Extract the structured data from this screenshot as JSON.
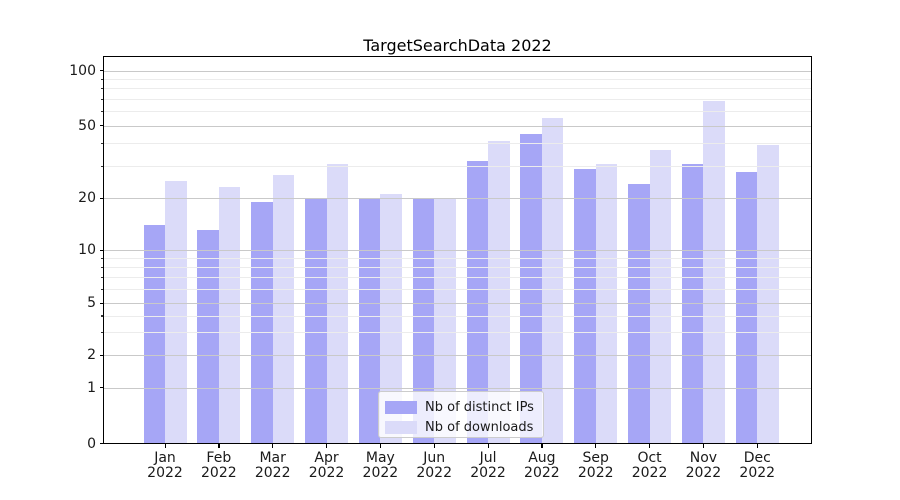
{
  "title": "TargetSearchData 2022",
  "chart_data": {
    "type": "bar",
    "title": "TargetSearchData 2022",
    "categories": [
      "Jan",
      "Feb",
      "Mar",
      "Apr",
      "May",
      "Jun",
      "Jul",
      "Aug",
      "Sep",
      "Oct",
      "Nov",
      "Dec"
    ],
    "category_year": "2022",
    "series": [
      {
        "name": "Nb of distinct IPs",
        "color": "#a6a6f6",
        "values": [
          14,
          13,
          19,
          20,
          20,
          20,
          32,
          45,
          29,
          24,
          31,
          28
        ]
      },
      {
        "name": "Nb of downloads",
        "color": "#dbdbf9",
        "values": [
          25,
          23,
          27,
          31,
          21,
          20,
          41,
          55,
          31,
          37,
          68,
          39
        ]
      }
    ],
    "xlabel": "",
    "ylabel": "",
    "yscale": "symlog",
    "ylim": [
      0,
      120
    ],
    "y_major_ticks": [
      0,
      1,
      2,
      5,
      10,
      20,
      50,
      100
    ],
    "y_minor_ticks": [
      3,
      4,
      6,
      7,
      8,
      9,
      30,
      40,
      60,
      70,
      80,
      90
    ],
    "grid": "both",
    "legend_position": "lower center"
  }
}
